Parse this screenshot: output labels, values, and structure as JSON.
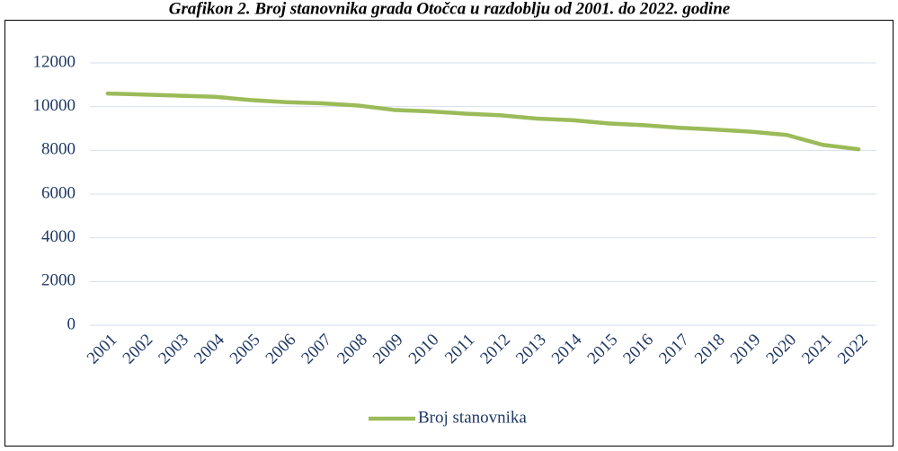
{
  "chart_data": {
    "type": "line",
    "title": "Grafikon 2. Broj stanovnika grada Otočca u razdoblju od 2001. do 2022. godine",
    "categories": [
      "2001",
      "2002",
      "2003",
      "2004",
      "2005",
      "2006",
      "2007",
      "2008",
      "2009",
      "2010",
      "2011",
      "2012",
      "2013",
      "2014",
      "2015",
      "2016",
      "2017",
      "2018",
      "2019",
      "2020",
      "2021",
      "2022"
    ],
    "series": [
      {
        "name": "Broj stanovnika",
        "color": "#9bbb59",
        "values": [
          10600,
          10550,
          10500,
          10450,
          10300,
          10200,
          10150,
          10050,
          9850,
          9780,
          9680,
          9600,
          9450,
          9380,
          9230,
          9150,
          9030,
          8950,
          8850,
          8700,
          8250,
          8050
        ]
      }
    ],
    "ylim": [
      0,
      12000
    ],
    "yticks": [
      0,
      2000,
      4000,
      6000,
      8000,
      10000,
      12000
    ],
    "grid": true,
    "legend": "bottom"
  }
}
